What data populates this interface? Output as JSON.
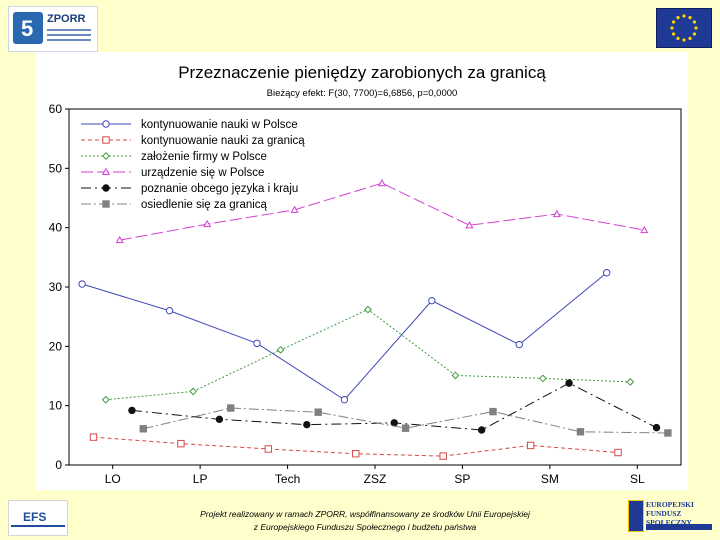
{
  "header": {
    "zporr_logo": "ZPORR"
  },
  "footer": {
    "line1": "Projekt realizowany w ramach ZPORR, współfinansowany ze środków Unii Europejskiej",
    "line2": "z Europejskiego Funduszu Społecznego i budżetu państwa",
    "eps_logo": "EFS",
    "efs_logo_line1": "EUROPEJSKI",
    "efs_logo_line2": "FUNDUSZ SPOŁECZNY"
  },
  "chart_data": {
    "type": "line",
    "title": "Przeznaczenie pieniędzy zarobionych za granicą",
    "subtitle": "Bieżący efekt: F(30, 7700)=6,6856, p=0,0000",
    "xlabel": "",
    "ylabel": "",
    "categories": [
      "LO",
      "LP",
      "Tech",
      "ZSZ",
      "SP",
      "SM",
      "SL"
    ],
    "ylim": [
      0,
      60
    ],
    "yticks": [
      "0",
      "10",
      "20",
      "30",
      "40",
      "50",
      "60"
    ],
    "grid": false,
    "legend_position": "top-left",
    "series": [
      {
        "name": "kontynuowanie nauki w Polsce",
        "values": [
          30.5,
          26,
          20.5,
          11,
          27.7,
          20.3,
          32.4
        ],
        "color": "#3f49b5",
        "dash": "",
        "marker": "open-circle",
        "offset": -0.35
      },
      {
        "name": "kontynuowanie nauki za granicą",
        "values": [
          4.7,
          3.6,
          2.7,
          1.9,
          1.5,
          3.3,
          2.1
        ],
        "color": "#d64a4a",
        "dash": "4 3",
        "marker": "open-square",
        "offset": -0.22
      },
      {
        "name": "założenie firmy w Polsce",
        "values": [
          11,
          12.4,
          19.4,
          26.2,
          15.1,
          14.6,
          14
        ],
        "color": "#3f9a3f",
        "dash": "2 2",
        "marker": "open-diamond",
        "offset": -0.08
      },
      {
        "name": "urządzenie się w Polsce",
        "values": [
          37.9,
          40.6,
          43,
          47.5,
          40.4,
          42.3,
          39.6
        ],
        "color": "#d43fd4",
        "dash": "12 4",
        "marker": "open-triangle",
        "offset": 0.08
      },
      {
        "name": "poznanie obcego języka i kraju",
        "values": [
          9.2,
          7.7,
          6.8,
          7.1,
          5.9,
          13.8,
          6.3
        ],
        "color": "#111111",
        "dash": "10 4 2 4",
        "marker": "filled-circle",
        "offset": 0.22
      },
      {
        "name": "osiedlenie się za granicą",
        "values": [
          6.1,
          9.6,
          8.9,
          6.2,
          9,
          5.6,
          5.4
        ],
        "color": "#808080",
        "dash": "10 3 2 3",
        "marker": "filled-square",
        "offset": 0.35
      }
    ]
  }
}
